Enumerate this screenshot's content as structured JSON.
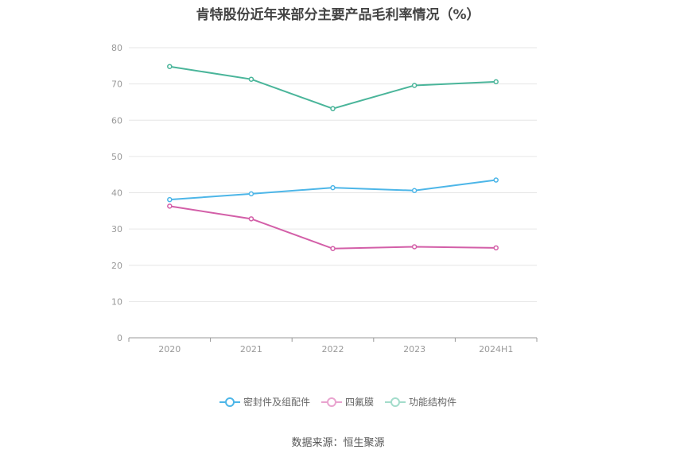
{
  "chart_data": {
    "type": "line",
    "title": "肯特股份近年来部分主要产品毛利率情况（%）",
    "categories": [
      "2020",
      "2021",
      "2022",
      "2023",
      "2024H1"
    ],
    "ylim": [
      0,
      80
    ],
    "yticks": [
      0,
      10,
      20,
      30,
      40,
      50,
      60,
      70,
      80
    ],
    "grid": true,
    "legend_position": "bottom",
    "series": [
      {
        "name": "密封件及组配件",
        "color": "#4db6e8",
        "values": [
          38.1,
          39.7,
          41.4,
          40.6,
          43.5
        ]
      },
      {
        "name": "四氟膜",
        "color": "#d35fa8",
        "values": [
          36.3,
          32.8,
          24.6,
          25.1,
          24.8
        ]
      },
      {
        "name": "功能结构件",
        "color": "#4ab59a",
        "values": [
          74.8,
          71.3,
          63.2,
          69.6,
          70.6
        ]
      }
    ],
    "source": "数据来源：恒生聚源"
  }
}
